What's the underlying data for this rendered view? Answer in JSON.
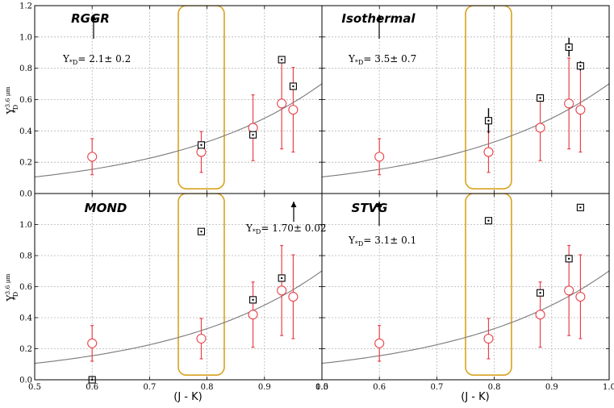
{
  "chart_data": {
    "type": "scatter",
    "xlim": [
      0.5,
      1.0
    ],
    "ylim": [
      0.0,
      1.2
    ],
    "xlabel": "(J - K)",
    "ylabel": "Y",
    "ylabel_sup": "3.6 μm",
    "ylabel_sub": "*D",
    "grid": true,
    "x_ticks": [
      "0.5",
      "0.6",
      "0.7",
      "0.8",
      "0.9",
      "1.0"
    ],
    "y_ticks": [
      "0.0",
      "0.2",
      "0.4",
      "0.6",
      "0.8",
      "1.0",
      "1.2"
    ],
    "curve": {
      "a": 0.106,
      "b": 3.78
    },
    "highlight_box": {
      "x": [
        0.75,
        0.83
      ],
      "y": [
        0.03,
        1.2
      ]
    },
    "reference": [
      {
        "x": 0.6,
        "y": 0.235,
        "err": 0.115
      },
      {
        "x": 0.79,
        "y": 0.265,
        "err": 0.13
      },
      {
        "x": 0.88,
        "y": 0.42,
        "err": 0.21
      },
      {
        "x": 0.93,
        "y": 0.575,
        "err": 0.29
      },
      {
        "x": 0.95,
        "y": 0.535,
        "err": 0.27
      }
    ],
    "panels": [
      {
        "title": "RGGR",
        "annotation_prefix": "Y",
        "annotation_sub": "*D",
        "annotation_value": "= 2.1± 0.2",
        "points": [
          {
            "x": 0.79,
            "y": 0.31,
            "err": 0.01
          },
          {
            "x": 0.88,
            "y": 0.375,
            "err": 0.01
          },
          {
            "x": 0.93,
            "y": 0.855,
            "err": 0.02
          },
          {
            "x": 0.95,
            "y": 0.685,
            "err": 0.02
          }
        ]
      },
      {
        "title": "Isothermal",
        "annotation_prefix": "Y",
        "annotation_sub": "*D",
        "annotation_value": "= 3.5± 0.7",
        "points": [
          {
            "x": 0.79,
            "y": 0.465,
            "err": 0.08
          },
          {
            "x": 0.88,
            "y": 0.61,
            "err": 0.02
          },
          {
            "x": 0.93,
            "y": 0.935,
            "err": 0.06
          },
          {
            "x": 0.95,
            "y": 0.815,
            "err": 0.03
          }
        ]
      },
      {
        "title": "MOND",
        "annotation_prefix": "Y",
        "annotation_sub": "*D",
        "annotation_value": "= 1.70± 0.02",
        "points": [
          {
            "x": 0.6,
            "y": 0.0,
            "err": 0.005
          },
          {
            "x": 0.79,
            "y": 0.955,
            "err": 0.01
          },
          {
            "x": 0.88,
            "y": 0.515,
            "err": 0.02
          },
          {
            "x": 0.93,
            "y": 0.655,
            "err": 0.02
          }
        ]
      },
      {
        "title": "STVG",
        "annotation_prefix": "Y",
        "annotation_sub": "*D",
        "annotation_value": "= 3.1± 0.1",
        "points": [
          {
            "x": 0.79,
            "y": 1.025,
            "err": 0.01
          },
          {
            "x": 0.88,
            "y": 0.56,
            "err": 0.02
          },
          {
            "x": 0.93,
            "y": 0.78,
            "err": 0.02
          },
          {
            "x": 0.95,
            "y": 1.11,
            "err": 0.02
          }
        ]
      }
    ],
    "colors": {
      "reference": "#e8434a",
      "curve": "#7a7a7a",
      "box": "#d9a21f",
      "grid": "#b5b5b5",
      "model": "#000000"
    }
  }
}
